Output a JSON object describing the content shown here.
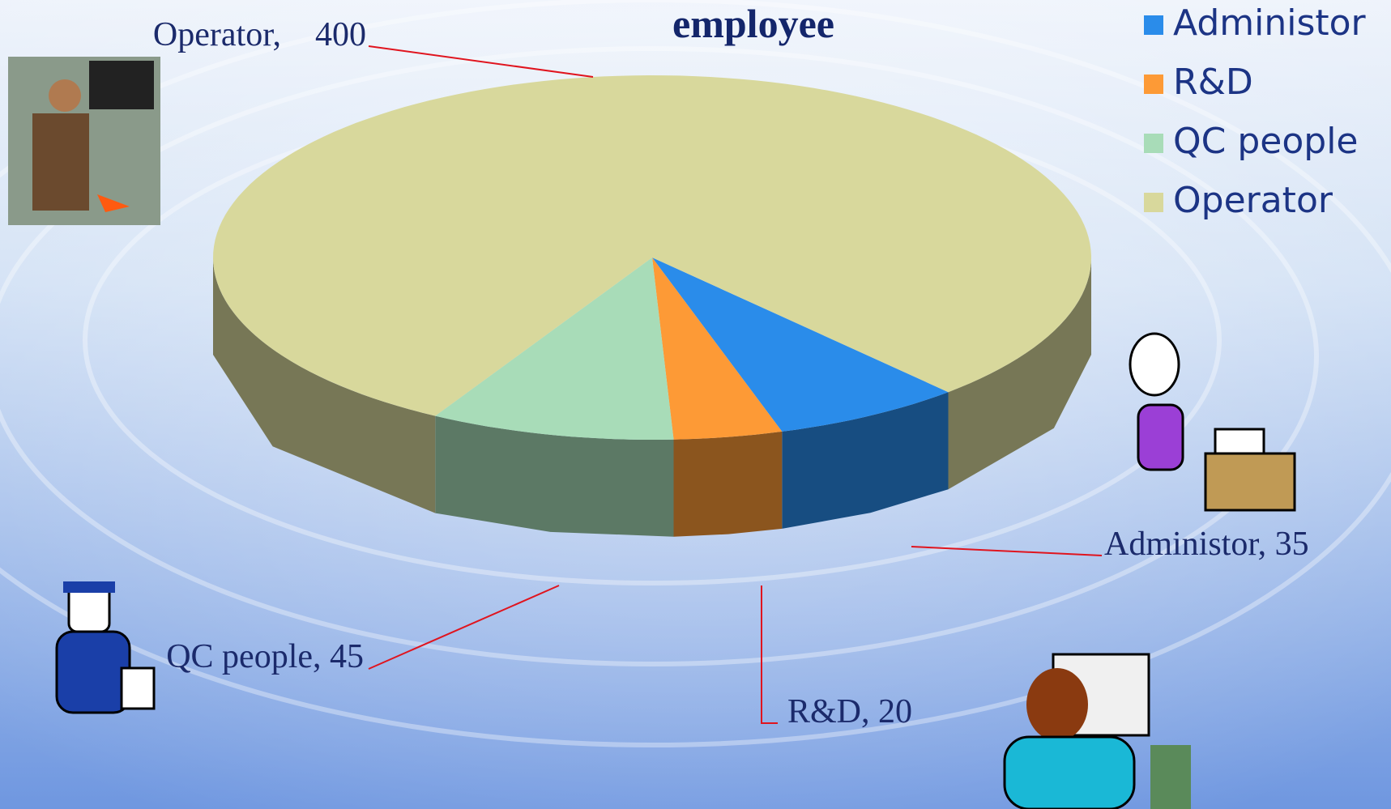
{
  "chart_data": {
    "type": "pie3d",
    "title": "employee",
    "categories": [
      "Administor",
      "R&D",
      "QC people",
      "Operator"
    ],
    "values": [
      35,
      20,
      45,
      400
    ],
    "value_labels": [
      "Administor, 35",
      "R&D, 20",
      "QC people, 45",
      "Operator,    400"
    ],
    "colors": [
      "#2a8cea",
      "#fd9a36",
      "#a8dcb8",
      "#d8d89c"
    ],
    "legend": "top-right"
  }
}
